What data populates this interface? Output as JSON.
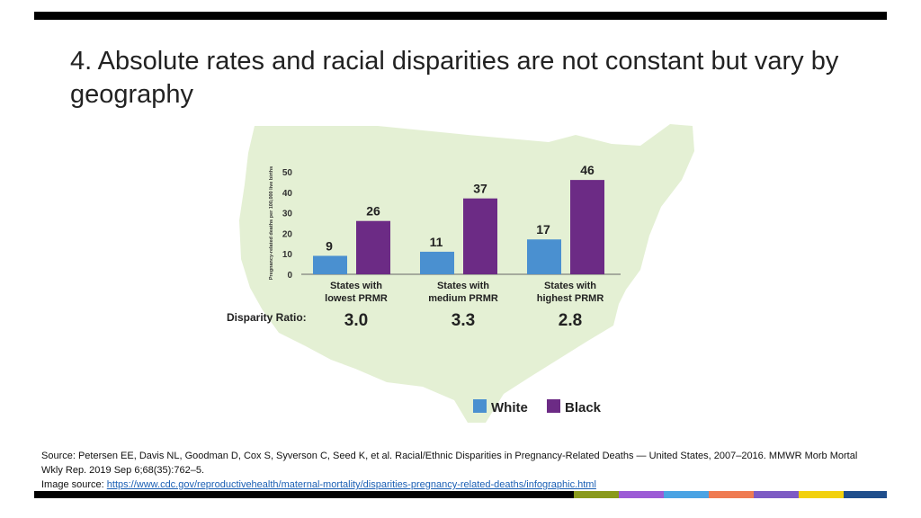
{
  "slide": {
    "title": "4. Absolute rates and racial disparities are not constant but vary by geography"
  },
  "chart_data": {
    "type": "bar",
    "ylabel": "Pregnancy-related deaths per 100,000 live births",
    "ylim": [
      0,
      50
    ],
    "yticks": [
      0,
      10,
      20,
      30,
      40,
      50
    ],
    "categories": [
      "States with\nlowest PRMR",
      "States with\nmedium PRMR",
      "States with\nhighest PRMR"
    ],
    "series": [
      {
        "name": "White",
        "color": "#4a90d0",
        "values": [
          9,
          11,
          17
        ]
      },
      {
        "name": "Black",
        "color": "#6c2b85",
        "values": [
          26,
          37,
          46
        ]
      }
    ],
    "disparity_label": "Disparity Ratio:",
    "disparity_ratios": [
      "3.0",
      "3.3",
      "2.8"
    ],
    "legend_position": "bottom-right",
    "background_map_color": "#e4f0d4"
  },
  "footer": {
    "source": "Source: Petersen EE, Davis NL, Goodman D, Cox S, Syverson C, Seed K, et al. Racial/Ethnic Disparities in Pregnancy-Related Deaths — United States, 2007–2016. MMWR Morb Mortal Wkly Rep. 2019 Sep 6;68(35):762–5.",
    "image_source_label": "Image source:",
    "image_source_url": "https://www.cdc.gov/reproductivehealth/maternal-mortality/disparities-pregnancy-related-deaths/infographic.html"
  },
  "accent_colors": [
    "#8a9a1b",
    "#9c5bd6",
    "#4ba3e3",
    "#ef7b52",
    "#7d5bc4",
    "#f2d10c",
    "#1f4e8c"
  ]
}
